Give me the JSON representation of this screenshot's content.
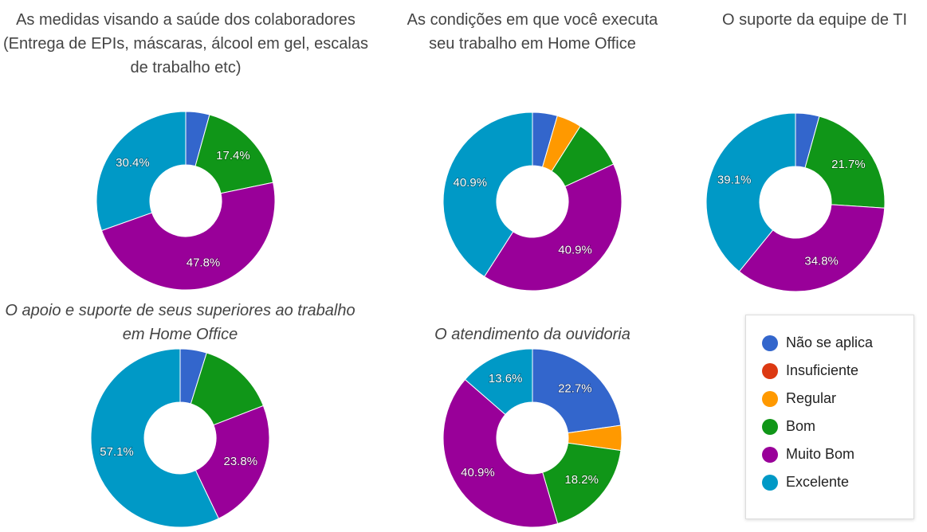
{
  "chart_data": [
    {
      "type": "pie",
      "title": "As medidas visando a saúde dos colaboradores (Entrega de EPIs, máscaras, álcool em gel, escalas de trabalho etc)",
      "categories": [
        "Não se aplica",
        "Bom",
        "Muito Bom",
        "Excelente"
      ],
      "values": [
        4.3,
        17.4,
        47.8,
        30.4
      ],
      "value_labels": [
        null,
        "17.4%",
        "47.8%",
        "30.4%"
      ],
      "colors": [
        "#3366cc",
        "#109618",
        "#990099",
        "#0099c6"
      ]
    },
    {
      "type": "pie",
      "title": "As condições em que você executa seu trabalho em Home Office",
      "categories": [
        "Não se aplica",
        "Regular",
        "Bom",
        "Muito Bom",
        "Excelente"
      ],
      "values": [
        4.5,
        4.5,
        9.1,
        40.9,
        40.9
      ],
      "value_labels": [
        null,
        null,
        null,
        "40.9%",
        "40.9%"
      ],
      "colors": [
        "#3366cc",
        "#ff9900",
        "#109618",
        "#990099",
        "#0099c6"
      ]
    },
    {
      "type": "pie",
      "title": "O suporte da equipe de TI",
      "categories": [
        "Não se aplica",
        "Bom",
        "Muito Bom",
        "Excelente"
      ],
      "values": [
        4.3,
        21.7,
        34.8,
        39.1
      ],
      "value_labels": [
        null,
        "21.7%",
        "34.8%",
        "39.1%"
      ],
      "colors": [
        "#3366cc",
        "#109618",
        "#990099",
        "#0099c6"
      ]
    },
    {
      "type": "pie",
      "title": "O apoio e suporte de seus superiores ao trabalho em Home Office",
      "categories": [
        "Não se aplica",
        "Bom",
        "Muito Bom",
        "Excelente"
      ],
      "values": [
        4.8,
        14.3,
        23.8,
        57.1
      ],
      "value_labels": [
        null,
        null,
        "23.8%",
        "57.1%"
      ],
      "colors": [
        "#3366cc",
        "#109618",
        "#990099",
        "#0099c6"
      ]
    },
    {
      "type": "pie",
      "title": "O atendimento da ouvidoria",
      "categories": [
        "Não se aplica",
        "Regular",
        "Bom",
        "Muito Bom",
        "Excelente"
      ],
      "values": [
        22.7,
        4.5,
        18.2,
        40.9,
        13.6
      ],
      "value_labels": [
        "22.7%",
        null,
        "18.2%",
        "40.9%",
        "13.6%"
      ],
      "colors": [
        "#3366cc",
        "#ff9900",
        "#109618",
        "#990099",
        "#0099c6"
      ]
    }
  ],
  "legend": {
    "items": [
      {
        "name": "Não se aplica",
        "color": "#3366cc"
      },
      {
        "name": "Insuficiente",
        "color": "#dc3912"
      },
      {
        "name": "Regular",
        "color": "#ff9900"
      },
      {
        "name": "Bom",
        "color": "#109618"
      },
      {
        "name": "Muito Bom",
        "color": "#990099"
      },
      {
        "name": "Excelente",
        "color": "#0099c6"
      }
    ]
  }
}
